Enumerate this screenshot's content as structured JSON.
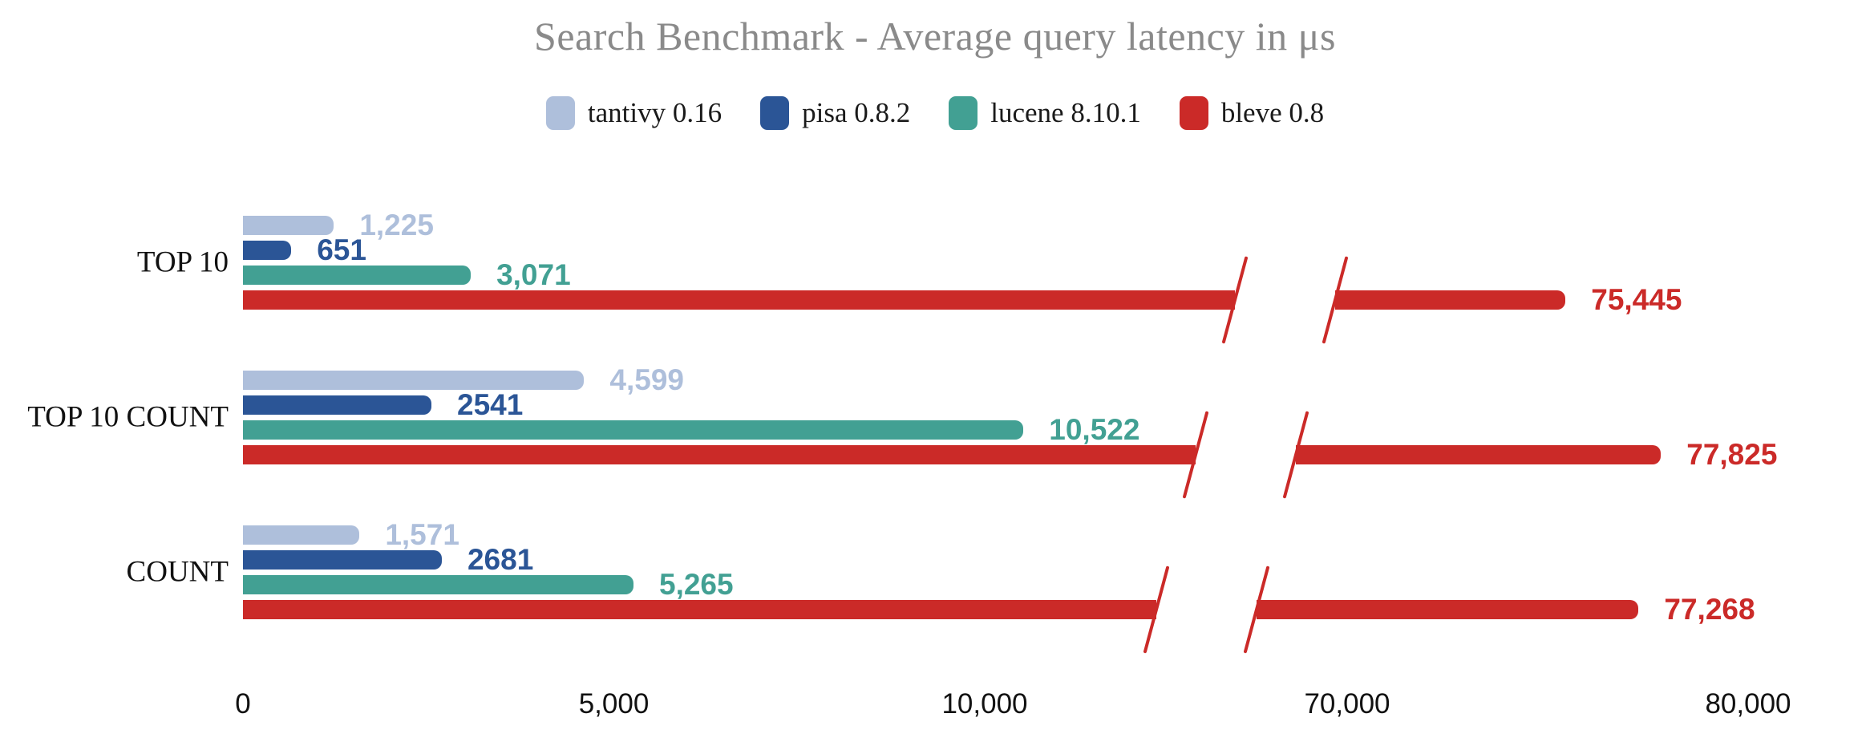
{
  "title": "Search Benchmark - Average query latency in μs",
  "colors": {
    "tantivy": "#aebfdb",
    "pisa": "#2b5596",
    "lucene": "#42a093",
    "bleve": "#cb2a28",
    "title_text": "#8a8a8a",
    "axis_text": "#111111"
  },
  "legend": [
    {
      "label": "tantivy 0.16",
      "color": "#aebfdb"
    },
    {
      "label": "pisa 0.8.2",
      "color": "#2b5596"
    },
    {
      "label": "lucene 8.10.1",
      "color": "#42a093"
    },
    {
      "label": "bleve 0.8",
      "color": "#cb2a28"
    }
  ],
  "chart_data": {
    "type": "bar",
    "orientation": "horizontal",
    "title": "Search Benchmark - Average query latency in μs",
    "xlabel": "",
    "ylabel": "",
    "grid": false,
    "legend_position": "top-center",
    "categories": [
      "TOP 10",
      "TOP 10 COUNT",
      "COUNT"
    ],
    "series": [
      {
        "name": "tantivy 0.16",
        "color": "#aebfdb",
        "values": [
          1225,
          4599,
          1571
        ],
        "labels": [
          "1,225",
          "4,599",
          "1,571"
        ]
      },
      {
        "name": "pisa 0.8.2",
        "color": "#2b5596",
        "values": [
          651,
          2541,
          2681
        ],
        "labels": [
          "651",
          "2541",
          "2681"
        ]
      },
      {
        "name": "lucene 8.10.1",
        "color": "#42a093",
        "values": [
          3071,
          10522,
          5265
        ],
        "labels": [
          "3,071",
          "10,522",
          "5,265"
        ]
      },
      {
        "name": "bleve 0.8",
        "color": "#cb2a28",
        "values": [
          75445,
          77825,
          77268
        ],
        "labels": [
          "75,445",
          "77,825",
          "77,268"
        ]
      }
    ],
    "x_axis": {
      "unit": "μs",
      "ticks": [
        {
          "value": 0,
          "label": "0"
        },
        {
          "value": 5000,
          "label": "5,000"
        },
        {
          "value": 10000,
          "label": "10,000"
        },
        {
          "value": 70000,
          "label": "70,000"
        },
        {
          "value": 80000,
          "label": "80,000"
        }
      ],
      "axis_break": {
        "between": [
          12000,
          67000
        ],
        "style": "double-slash"
      },
      "range_left_segment": [
        0,
        12000
      ],
      "range_right_segment": [
        67000,
        81000
      ]
    }
  }
}
